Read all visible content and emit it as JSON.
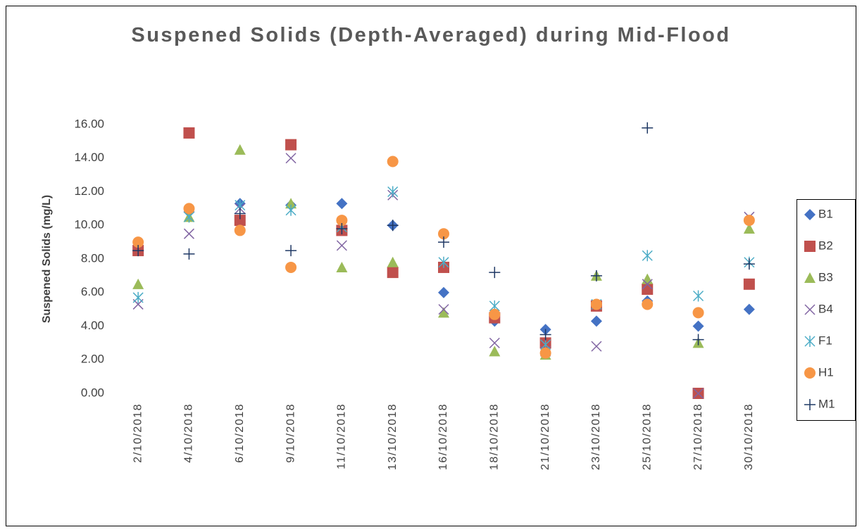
{
  "chart_data": {
    "type": "scatter",
    "title": "Suspened Solids (Depth-Averaged) during Mid-Flood",
    "y_label": "Suspened Solids (mg/L)",
    "categories": [
      "2/10/2018",
      "4/10/2018",
      "6/10/2018",
      "9/10/2018",
      "11/10/2018",
      "13/10/2018",
      "16/10/2018",
      "18/10/2018",
      "21/10/2018",
      "23/10/2018",
      "25/10/2018",
      "27/10/2018",
      "30/10/2018"
    ],
    "series": [
      {
        "name": "B1",
        "color": "#4472c4",
        "values": [
          8.7,
          10.8,
          11.3,
          11.2,
          11.3,
          10.0,
          6.0,
          4.3,
          3.8,
          4.3,
          5.5,
          4.0,
          5.0
        ]
      },
      {
        "name": "B2",
        "color": "#c0504d",
        "values": [
          8.5,
          15.5,
          10.3,
          14.8,
          9.7,
          7.2,
          7.5,
          4.5,
          3.0,
          5.2,
          6.2,
          0.0,
          6.5
        ]
      },
      {
        "name": "B3",
        "color": "#9bbb59",
        "values": [
          6.5,
          10.5,
          14.5,
          11.3,
          7.5,
          7.8,
          4.8,
          2.5,
          2.3,
          7.0,
          6.8,
          3.0,
          9.8
        ]
      },
      {
        "name": "B4",
        "color": "#8064a2",
        "values": [
          5.3,
          9.5,
          11.0,
          14.0,
          8.8,
          11.8,
          5.0,
          3.0,
          2.5,
          2.8,
          6.5,
          0.0,
          10.5
        ]
      },
      {
        "name": "F1",
        "color": "#4bacc6",
        "values": [
          5.7,
          10.5,
          11.2,
          10.9,
          9.9,
          12.0,
          7.8,
          5.2,
          2.9,
          5.3,
          8.2,
          5.8,
          7.8
        ]
      },
      {
        "name": "H1",
        "color": "#f79646",
        "values": [
          9.0,
          11.0,
          9.7,
          7.5,
          10.3,
          13.8,
          9.5,
          4.7,
          2.4,
          5.3,
          5.3,
          4.8,
          10.3
        ]
      },
      {
        "name": "M1",
        "color": "#1f3864",
        "values": [
          8.5,
          8.3,
          10.7,
          8.5,
          9.8,
          10.0,
          9.0,
          7.2,
          3.5,
          7.0,
          15.8,
          3.2,
          7.7
        ]
      }
    ],
    "ylim": [
      0,
      16
    ],
    "yticks": [
      {
        "value": 0,
        "label": "0.00"
      },
      {
        "value": 2,
        "label": "2.00"
      },
      {
        "value": 4,
        "label": "4.00"
      },
      {
        "value": 6,
        "label": "6.00"
      },
      {
        "value": 8,
        "label": "8.00"
      },
      {
        "value": 10,
        "label": "10.00"
      },
      {
        "value": 12,
        "label": "12.00"
      },
      {
        "value": 14,
        "label": "14.00"
      },
      {
        "value": 16,
        "label": "16.00"
      }
    ],
    "grid": false,
    "legend": "right"
  }
}
